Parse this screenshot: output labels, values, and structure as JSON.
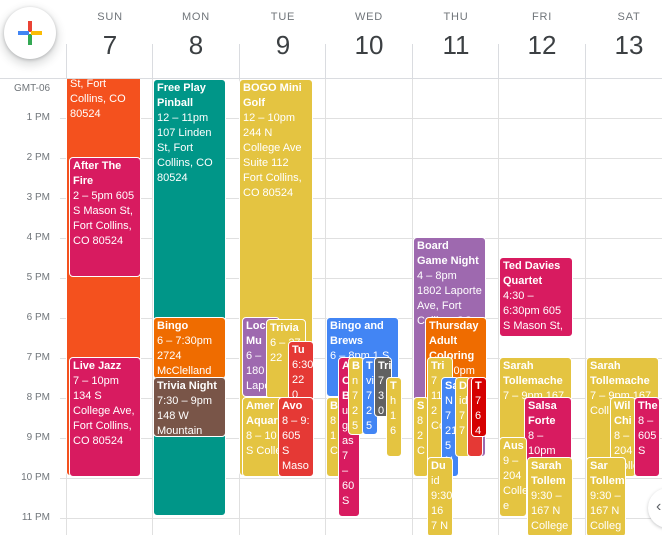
{
  "timezone": "GMT-06",
  "colors": {
    "orange": "#f4511e",
    "pink": "#d81b60",
    "teal": "#009688",
    "yellow": "#e4c441",
    "purple": "#8e24aa",
    "lavender": "#9e69af",
    "blue": "#4285f4",
    "tomato": "#d50000",
    "tangerine": "#ef6c00",
    "cocoa": "#795548",
    "gray": "#616161",
    "red": "#e53935"
  },
  "days": [
    {
      "name": "SUN",
      "num": "7"
    },
    {
      "name": "MON",
      "num": "8"
    },
    {
      "name": "TUE",
      "num": "9"
    },
    {
      "name": "WED",
      "num": "10"
    },
    {
      "name": "THU",
      "num": "11"
    },
    {
      "name": "FRI",
      "num": "12"
    },
    {
      "name": "SAT",
      "num": "13"
    }
  ],
  "hours": [
    "1 PM",
    "2 PM",
    "3 PM",
    "4 PM",
    "5 PM",
    "6 PM",
    "7 PM",
    "8 PM",
    "9 PM",
    "10 PM",
    "11 PM"
  ],
  "events": [
    {
      "title": "",
      "detail": "St, Fort Collins, CO 80524",
      "color": "orange"
    },
    {
      "title": "After The Fire",
      "detail": "2 – 5pm 605 S Mason St, Fort Collins, CO 80524",
      "color": "pink"
    },
    {
      "title": "Live Jazz",
      "detail": "7 – 10pm 134 S College Ave, Fort Collins, CO 80524",
      "color": "pink"
    },
    {
      "title": "Free Play Pinball",
      "detail": "12 – 11pm 107 Linden St, Fort Collins, CO 80524",
      "color": "teal"
    },
    {
      "title": "Bingo",
      "detail": "6 – 7:30pm 2724 McClelland",
      "color": "tangerine"
    },
    {
      "title": "Trivia Night",
      "detail": "7:30 – 9pm 148 W Mountain",
      "color": "cocoa"
    },
    {
      "title": "BOGO Mini Golf",
      "detail": "12 – 10pm 244 N College Ave Suite 112 Fort Collins, CO 80524",
      "color": "yellow"
    },
    {
      "title": "Loc Mu",
      "detail": "6 – 180 Laport",
      "color": "lavender"
    },
    {
      "title": "Trivia",
      "detail": "6 – 27 22",
      "color": "yellow"
    },
    {
      "title": "Tu",
      "detail": "6:30 22 0",
      "color": "red"
    },
    {
      "title": "Amer Aquar",
      "detail": "8 – 10 204 S College",
      "color": "yellow"
    },
    {
      "title": "Avo",
      "detail": "8 – 9: 605 S Maso",
      "color": "red"
    },
    {
      "title": "Bingo and Brews",
      "detail": "6 – 8pm 1 S",
      "color": "blue"
    },
    {
      "title": "B",
      "detail": "8 1 C",
      "color": "yellow"
    },
    {
      "title": "A O B",
      "detail": "ue gr as 7 – 60 S",
      "color": "pink"
    },
    {
      "title": "B",
      "detail": "n 7 2 5",
      "color": "yellow"
    },
    {
      "title": "T",
      "detail": "vi 7 2 5",
      "color": "blue"
    },
    {
      "title": "Tri",
      "detail": "7 3 0",
      "color": "gray"
    },
    {
      "title": "T",
      "detail": "h 1 6",
      "color": "yellow"
    },
    {
      "title": "Board Game Night",
      "detail": "4 – 8pm 1802 Laporte Ave, Fort Collins, CO",
      "color": "lavender"
    },
    {
      "title": "Thursday Adult Coloring",
      "detail": "7 – 10pm Collins",
      "color": "tangerine"
    },
    {
      "title": "S",
      "detail": "8 2 C",
      "color": "yellow"
    },
    {
      "title": "Tri",
      "detail": "7 11 2 Co",
      "color": "yellow"
    },
    {
      "title": "Sa",
      "detail": "N 7 21 5 N",
      "color": "blue"
    },
    {
      "title": "D",
      "detail": "id 7 7",
      "color": "yellow"
    },
    {
      "title": "T",
      "detail": "7 N",
      "color": "red"
    },
    {
      "title": "T",
      "detail": "7 6 4",
      "color": "tomato"
    },
    {
      "title": "Du",
      "detail": "id 9:30 16 7 N",
      "color": "yellow"
    },
    {
      "title": "Ted Davies Quartet",
      "detail": "4:30 – 6:30pm 605 S Mason St,",
      "color": "pink"
    },
    {
      "title": "Sarah Tollemache",
      "detail": "7 – 9pm 167",
      "color": "yellow"
    },
    {
      "title": "Salsa Forte",
      "detail": "8 – 10pm 605 S",
      "color": "pink"
    },
    {
      "title": "Aus",
      "detail": "9 – 204 Colle e Av",
      "color": "yellow"
    },
    {
      "title": "Sarah Tollem",
      "detail": "9:30 – 167 N College",
      "color": "yellow"
    },
    {
      "title": "Sarah Tollemache",
      "detail": "7 – 9pm 167 Coll",
      "color": "yellow"
    },
    {
      "title": "Wil Chi",
      "detail": "8 – 204 Colle",
      "color": "yellow"
    },
    {
      "title": "The",
      "detail": "8 – 605 S",
      "color": "pink"
    },
    {
      "title": "Sar Tollem",
      "detail": "9:30 – 167 N Colleg",
      "color": "yellow"
    }
  ]
}
